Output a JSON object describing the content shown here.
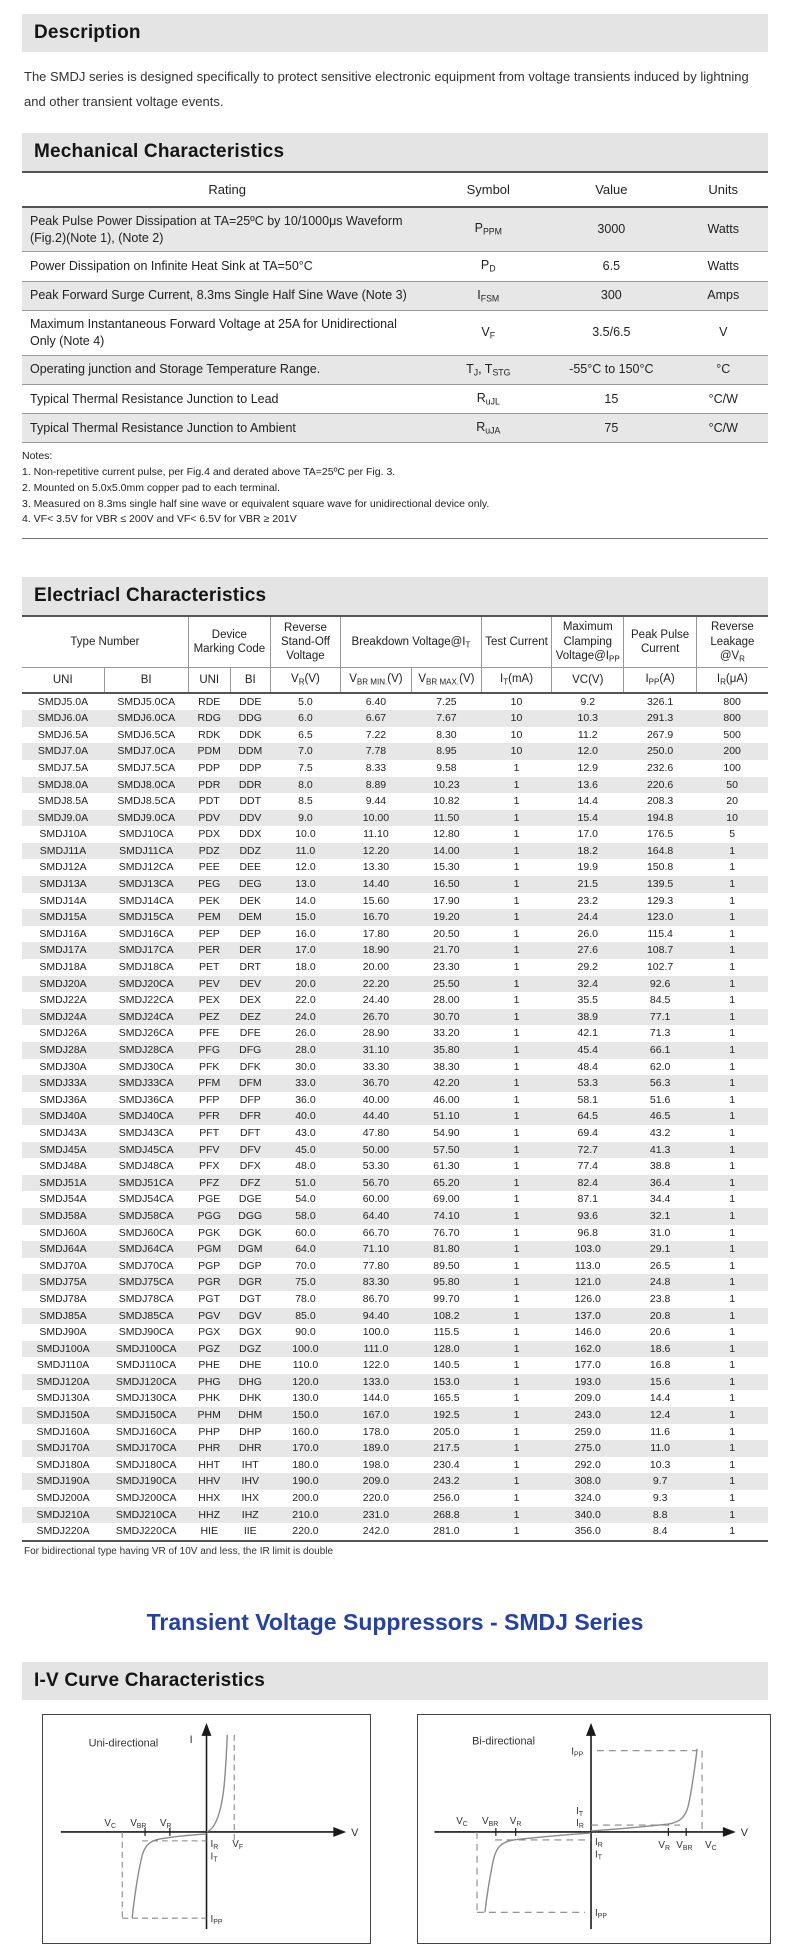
{
  "colors": {
    "accent_blue": "#2441a8",
    "section_bar_bg": "#e4e4e4",
    "row_alt": "#e7e7e7"
  },
  "description": {
    "title": "Description",
    "body": "The SMDJ series is designed specifically to protect sensitive electronic equipment from voltage transients induced by lightning and other transient voltage events."
  },
  "mechanical": {
    "title": "Mechanical Characteristics",
    "columns": [
      "Rating",
      "Symbol",
      "Value",
      "Units"
    ],
    "rows": [
      {
        "rating": "Peak Pulse Power Dissipation at TA=25ºC by 10/1000μs Waveform (Fig.2)(Note 1), (Note 2)",
        "symbol": [
          {
            "t": "P"
          },
          {
            "s": "PPM"
          }
        ],
        "value": "3000",
        "units": "Watts"
      },
      {
        "rating": "Power Dissipation on Infinite Heat Sink at TA=50°C",
        "symbol": [
          {
            "t": "P"
          },
          {
            "s": "D"
          }
        ],
        "value": "6.5",
        "units": "Watts"
      },
      {
        "rating": "Peak Forward Surge Current, 8.3ms Single Half Sine Wave (Note 3)",
        "symbol": [
          {
            "t": "I"
          },
          {
            "s": "FSM"
          }
        ],
        "value": "300",
        "units": "Amps"
      },
      {
        "rating": "Maximum Instantaneous Forward  Voltage at 25A for Unidirectional  Only (Note 4)",
        "symbol": [
          {
            "t": "V"
          },
          {
            "s": "F"
          }
        ],
        "value": "3.5/6.5",
        "units": "V"
      },
      {
        "rating": "Operating junction and Storage Temperature Range.",
        "symbol": [
          {
            "t": "T"
          },
          {
            "s": "J"
          },
          {
            "t": ", T"
          },
          {
            "s": "STG"
          }
        ],
        "value": "-55°C to 150°C",
        "units": "°C"
      },
      {
        "rating": "Typical Thermal Resistance Junction to Lead",
        "symbol": [
          {
            "t": "R"
          },
          {
            "s": "uJL"
          }
        ],
        "value": "15",
        "units": "°C/W"
      },
      {
        "rating": "Typical Thermal Resistance Junction to Ambient",
        "symbol": [
          {
            "t": "R"
          },
          {
            "s": "uJA"
          }
        ],
        "value": "75",
        "units": "°C/W"
      }
    ],
    "notes_title": "Notes:",
    "notes": [
      "1. Non-repetitive current pulse, per Fig.4 and derated above TA=25ºC per Fig. 3.",
      "2. Mounted on 5.0x5.0mm copper pad to each terminal.",
      "3. Measured on 8.3ms single half sine wave or equivalent square wave for unidirectional device only.",
      "4. VF< 3.5V for VBR ≤ 200V and VF< 6.5V for VBR ≥ 201V"
    ]
  },
  "electrical": {
    "title": "Electriacl Characteristics",
    "header_groups": [
      {
        "label": [
          {
            "t": "Type Number"
          }
        ],
        "span": 2
      },
      {
        "label": [
          {
            "t": "Device Marking Code"
          }
        ],
        "span": 2
      },
      {
        "label": [
          {
            "t": "Reverse Stand-Off Voltage"
          }
        ],
        "span": 1
      },
      {
        "label": [
          {
            "t": "Breakdown Voltage@I"
          },
          {
            "s": "T"
          }
        ],
        "span": 2
      },
      {
        "label": [
          {
            "t": "Test Current"
          }
        ],
        "span": 1
      },
      {
        "label": [
          {
            "t": "Maximum Clamping Voltage@I"
          },
          {
            "s": "PP"
          }
        ],
        "span": 1
      },
      {
        "label": [
          {
            "t": "Peak Pulse Current"
          }
        ],
        "span": 1
      },
      {
        "label": [
          {
            "t": "Reverse Leakage @V"
          },
          {
            "s": "R"
          }
        ],
        "span": 1
      }
    ],
    "subheader": [
      [
        {
          "t": "UNI"
        }
      ],
      [
        {
          "t": "BI"
        }
      ],
      [
        {
          "t": "UNI"
        }
      ],
      [
        {
          "t": "BI"
        }
      ],
      [
        {
          "t": "V"
        },
        {
          "s": "R"
        },
        {
          "t": "(V)"
        }
      ],
      [
        {
          "t": "V"
        },
        {
          "s": "BR MIN."
        },
        {
          "t": "(V)"
        }
      ],
      [
        {
          "t": "V"
        },
        {
          "s": "BR MAX."
        },
        {
          "t": "(V)"
        }
      ],
      [
        {
          "t": "I"
        },
        {
          "s": "T"
        },
        {
          "t": "(mA)"
        }
      ],
      [
        {
          "t": "VC(V)"
        }
      ],
      [
        {
          "t": "I"
        },
        {
          "s": "PP"
        },
        {
          "t": "(A)"
        }
      ],
      [
        {
          "t": "I"
        },
        {
          "s": "R"
        },
        {
          "t": "(μA)"
        }
      ]
    ],
    "col_widths": [
      "11%",
      "11.3%",
      "5.6%",
      "5.4%",
      "9.4%",
      "9.5%",
      "9.4%",
      "9.4%",
      "9.7%",
      "9.7%",
      "9.6%"
    ],
    "rows": [
      [
        "SMDJ5.0A",
        "SMDJ5.0CA",
        "RDE",
        "DDE",
        "5.0",
        "6.40",
        "7.25",
        "10",
        "9.2",
        "326.1",
        "800"
      ],
      [
        "SMDJ6.0A",
        "SMDJ6.0CA",
        "RDG",
        "DDG",
        "6.0",
        "6.67",
        "7.67",
        "10",
        "10.3",
        "291.3",
        "800"
      ],
      [
        "SMDJ6.5A",
        "SMDJ6.5CA",
        "RDK",
        "DDK",
        "6.5",
        "7.22",
        "8.30",
        "10",
        "11.2",
        "267.9",
        "500"
      ],
      [
        "SMDJ7.0A",
        "SMDJ7.0CA",
        "PDM",
        "DDM",
        "7.0",
        "7.78",
        "8.95",
        "10",
        "12.0",
        "250.0",
        "200"
      ],
      [
        "SMDJ7.5A",
        "SMDJ7.5CA",
        "PDP",
        "DDP",
        "7.5",
        "8.33",
        "9.58",
        "1",
        "12.9",
        "232.6",
        "100"
      ],
      [
        "SMDJ8.0A",
        "SMDJ8.0CA",
        "PDR",
        "DDR",
        "8.0",
        "8.89",
        "10.23",
        "1",
        "13.6",
        "220.6",
        "50"
      ],
      [
        "SMDJ8.5A",
        "SMDJ8.5CA",
        "PDT",
        "DDT",
        "8.5",
        "9.44",
        "10.82",
        "1",
        "14.4",
        "208.3",
        "20"
      ],
      [
        "SMDJ9.0A",
        "SMDJ9.0CA",
        "PDV",
        "DDV",
        "9.0",
        "10.00",
        "11.50",
        "1",
        "15.4",
        "194.8",
        "10"
      ],
      [
        "SMDJ10A",
        "SMDJ10CA",
        "PDX",
        "DDX",
        "10.0",
        "11.10",
        "12.80",
        "1",
        "17.0",
        "176.5",
        "5"
      ],
      [
        "SMDJ11A",
        "SMDJ11CA",
        "PDZ",
        "DDZ",
        "11.0",
        "12.20",
        "14.00",
        "1",
        "18.2",
        "164.8",
        "1"
      ],
      [
        "SMDJ12A",
        "SMDJ12CA",
        "PEE",
        "DEE",
        "12.0",
        "13.30",
        "15.30",
        "1",
        "19.9",
        "150.8",
        "1"
      ],
      [
        "SMDJ13A",
        "SMDJ13CA",
        "PEG",
        "DEG",
        "13.0",
        "14.40",
        "16.50",
        "1",
        "21.5",
        "139.5",
        "1"
      ],
      [
        "SMDJ14A",
        "SMDJ14CA",
        "PEK",
        "DEK",
        "14.0",
        "15.60",
        "17.90",
        "1",
        "23.2",
        "129.3",
        "1"
      ],
      [
        "SMDJ15A",
        "SMDJ15CA",
        "PEM",
        "DEM",
        "15.0",
        "16.70",
        "19.20",
        "1",
        "24.4",
        "123.0",
        "1"
      ],
      [
        "SMDJ16A",
        "SMDJ16CA",
        "PEP",
        "DEP",
        "16.0",
        "17.80",
        "20.50",
        "1",
        "26.0",
        "115.4",
        "1"
      ],
      [
        "SMDJ17A",
        "SMDJ17CA",
        "PER",
        "DER",
        "17.0",
        "18.90",
        "21.70",
        "1",
        "27.6",
        "108.7",
        "1"
      ],
      [
        "SMDJ18A",
        "SMDJ18CA",
        "PET",
        "DRT",
        "18.0",
        "20.00",
        "23.30",
        "1",
        "29.2",
        "102.7",
        "1"
      ],
      [
        "SMDJ20A",
        "SMDJ20CA",
        "PEV",
        "DEV",
        "20.0",
        "22.20",
        "25.50",
        "1",
        "32.4",
        "92.6",
        "1"
      ],
      [
        "SMDJ22A",
        "SMDJ22CA",
        "PEX",
        "DEX",
        "22.0",
        "24.40",
        "28.00",
        "1",
        "35.5",
        "84.5",
        "1"
      ],
      [
        "SMDJ24A",
        "SMDJ24CA",
        "PEZ",
        "DEZ",
        "24.0",
        "26.70",
        "30.70",
        "1",
        "38.9",
        "77.1",
        "1"
      ],
      [
        "SMDJ26A",
        "SMDJ26CA",
        "PFE",
        "DFE",
        "26.0",
        "28.90",
        "33.20",
        "1",
        "42.1",
        "71.3",
        "1"
      ],
      [
        "SMDJ28A",
        "SMDJ28CA",
        "PFG",
        "DFG",
        "28.0",
        "31.10",
        "35.80",
        "1",
        "45.4",
        "66.1",
        "1"
      ],
      [
        "SMDJ30A",
        "SMDJ30CA",
        "PFK",
        "DFK",
        "30.0",
        "33.30",
        "38.30",
        "1",
        "48.4",
        "62.0",
        "1"
      ],
      [
        "SMDJ33A",
        "SMDJ33CA",
        "PFM",
        "DFM",
        "33.0",
        "36.70",
        "42.20",
        "1",
        "53.3",
        "56.3",
        "1"
      ],
      [
        "SMDJ36A",
        "SMDJ36CA",
        "PFP",
        "DFP",
        "36.0",
        "40.00",
        "46.00",
        "1",
        "58.1",
        "51.6",
        "1"
      ],
      [
        "SMDJ40A",
        "SMDJ40CA",
        "PFR",
        "DFR",
        "40.0",
        "44.40",
        "51.10",
        "1",
        "64.5",
        "46.5",
        "1"
      ],
      [
        "SMDJ43A",
        "SMDJ43CA",
        "PFT",
        "DFT",
        "43.0",
        "47.80",
        "54.90",
        "1",
        "69.4",
        "43.2",
        "1"
      ],
      [
        "SMDJ45A",
        "SMDJ45CA",
        "PFV",
        "DFV",
        "45.0",
        "50.00",
        "57.50",
        "1",
        "72.7",
        "41.3",
        "1"
      ],
      [
        "SMDJ48A",
        "SMDJ48CA",
        "PFX",
        "DFX",
        "48.0",
        "53.30",
        "61.30",
        "1",
        "77.4",
        "38.8",
        "1"
      ],
      [
        "SMDJ51A",
        "SMDJ51CA",
        "PFZ",
        "DFZ",
        "51.0",
        "56.70",
        "65.20",
        "1",
        "82.4",
        "36.4",
        "1"
      ],
      [
        "SMDJ54A",
        "SMDJ54CA",
        "PGE",
        "DGE",
        "54.0",
        "60.00",
        "69.00",
        "1",
        "87.1",
        "34.4",
        "1"
      ],
      [
        "SMDJ58A",
        "SMDJ58CA",
        "PGG",
        "DGG",
        "58.0",
        "64.40",
        "74.10",
        "1",
        "93.6",
        "32.1",
        "1"
      ],
      [
        "SMDJ60A",
        "SMDJ60CA",
        "PGK",
        "DGK",
        "60.0",
        "66.70",
        "76.70",
        "1",
        "96.8",
        "31.0",
        "1"
      ],
      [
        "SMDJ64A",
        "SMDJ64CA",
        "PGM",
        "DGM",
        "64.0",
        "71.10",
        "81.80",
        "1",
        "103.0",
        "29.1",
        "1"
      ],
      [
        "SMDJ70A",
        "SMDJ70CA",
        "PGP",
        "DGP",
        "70.0",
        "77.80",
        "89.50",
        "1",
        "113.0",
        "26.5",
        "1"
      ],
      [
        "SMDJ75A",
        "SMDJ75CA",
        "PGR",
        "DGR",
        "75.0",
        "83.30",
        "95.80",
        "1",
        "121.0",
        "24.8",
        "1"
      ],
      [
        "SMDJ78A",
        "SMDJ78CA",
        "PGT",
        "DGT",
        "78.0",
        "86.70",
        "99.70",
        "1",
        "126.0",
        "23.8",
        "1"
      ],
      [
        "SMDJ85A",
        "SMDJ85CA",
        "PGV",
        "DGV",
        "85.0",
        "94.40",
        "108.2",
        "1",
        "137.0",
        "20.8",
        "1"
      ],
      [
        "SMDJ90A",
        "SMDJ90CA",
        "PGX",
        "DGX",
        "90.0",
        "100.0",
        "115.5",
        "1",
        "146.0",
        "20.6",
        "1"
      ],
      [
        "SMDJ100A",
        "SMDJ100CA",
        "PGZ",
        "DGZ",
        "100.0",
        "111.0",
        "128.0",
        "1",
        "162.0",
        "18.6",
        "1"
      ],
      [
        "SMDJ110A",
        "SMDJ110CA",
        "PHE",
        "DHE",
        "110.0",
        "122.0",
        "140.5",
        "1",
        "177.0",
        "16.8",
        "1"
      ],
      [
        "SMDJ120A",
        "SMDJ120CA",
        "PHG",
        "DHG",
        "120.0",
        "133.0",
        "153.0",
        "1",
        "193.0",
        "15.6",
        "1"
      ],
      [
        "SMDJ130A",
        "SMDJ130CA",
        "PHK",
        "DHK",
        "130.0",
        "144.0",
        "165.5",
        "1",
        "209.0",
        "14.4",
        "1"
      ],
      [
        "SMDJ150A",
        "SMDJ150CA",
        "PHM",
        "DHM",
        "150.0",
        "167.0",
        "192.5",
        "1",
        "243.0",
        "12.4",
        "1"
      ],
      [
        "SMDJ160A",
        "SMDJ160CA",
        "PHP",
        "DHP",
        "160.0",
        "178.0",
        "205.0",
        "1",
        "259.0",
        "11.6",
        "1"
      ],
      [
        "SMDJ170A",
        "SMDJ170CA",
        "PHR",
        "DHR",
        "170.0",
        "189.0",
        "217.5",
        "1",
        "275.0",
        "11.0",
        "1"
      ],
      [
        "SMDJ180A",
        "SMDJ180CA",
        "HHT",
        "IHT",
        "180.0",
        "198.0",
        "230.4",
        "1",
        "292.0",
        "10.3",
        "1"
      ],
      [
        "SMDJ190A",
        "SMDJ190CA",
        "HHV",
        "IHV",
        "190.0",
        "209.0",
        "243.2",
        "1",
        "308.0",
        "9.7",
        "1"
      ],
      [
        "SMDJ200A",
        "SMDJ200CA",
        "HHX",
        "IHX",
        "200.0",
        "220.0",
        "256.0",
        "1",
        "324.0",
        "9.3",
        "1"
      ],
      [
        "SMDJ210A",
        "SMDJ210CA",
        "HHZ",
        "IHZ",
        "210.0",
        "231.0",
        "268.8",
        "1",
        "340.0",
        "8.8",
        "1"
      ],
      [
        "SMDJ220A",
        "SMDJ220CA",
        "HIE",
        "IIE",
        "220.0",
        "242.0",
        "281.0",
        "1",
        "356.0",
        "8.4",
        "1"
      ]
    ],
    "footnote": "For bidirectional type having VR of 10V and less, the IR limit is double"
  },
  "series_title": "Transient Voltage Suppressors - SMDJ Series",
  "iv_section": {
    "title": "I-V Curve Characteristics",
    "uni": {
      "title": "Uni-directional",
      "axis_i": "I",
      "axis_v": "V",
      "vc": [
        {
          "t": "V"
        },
        {
          "s": "C"
        }
      ],
      "vbr": [
        {
          "t": "V"
        },
        {
          "s": "BR"
        }
      ],
      "vr": [
        {
          "t": "V"
        },
        {
          "s": "R"
        }
      ],
      "ir": [
        {
          "t": "I"
        },
        {
          "s": "R"
        }
      ],
      "it": [
        {
          "t": "I"
        },
        {
          "s": "T"
        }
      ],
      "vf": [
        {
          "t": "V"
        },
        {
          "s": "F"
        }
      ],
      "ipp": [
        {
          "t": "I"
        },
        {
          "s": "PP"
        }
      ]
    },
    "bi": {
      "title": "Bi-directional",
      "axis_v": "V",
      "ipp_top": [
        {
          "t": "I"
        },
        {
          "s": "PP"
        }
      ],
      "it_up": [
        {
          "t": "I"
        },
        {
          "s": "T"
        }
      ],
      "ir_up": [
        {
          "t": "I"
        },
        {
          "s": "R"
        }
      ],
      "ir_dn": [
        {
          "t": "I"
        },
        {
          "s": "R"
        }
      ],
      "it_dn": [
        {
          "t": "I"
        },
        {
          "s": "T"
        }
      ],
      "vc_left": [
        {
          "t": "V"
        },
        {
          "s": "C"
        }
      ],
      "vbr_left": [
        {
          "t": "V"
        },
        {
          "s": "BR"
        }
      ],
      "vr_left": [
        {
          "t": "V"
        },
        {
          "s": "R"
        }
      ],
      "vr_right": [
        {
          "t": "V"
        },
        {
          "s": "R"
        }
      ],
      "vbr_right": [
        {
          "t": "V"
        },
        {
          "s": "BR"
        }
      ],
      "vc_right": [
        {
          "t": "V"
        },
        {
          "s": "C"
        }
      ],
      "ipp_bottom": [
        {
          "t": "I"
        },
        {
          "s": "PP"
        }
      ]
    }
  }
}
